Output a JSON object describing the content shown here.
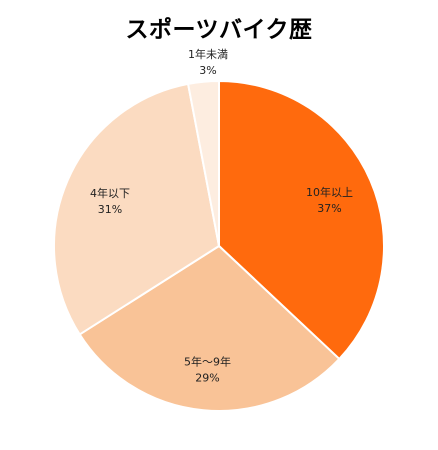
{
  "chart_data": {
    "type": "pie",
    "title": "スポーツバイク歴",
    "slices": [
      {
        "label": "10年以上",
        "percent_label": "37%",
        "value": 37,
        "color": "#FF6A0D"
      },
      {
        "label": "5年〜9年",
        "percent_label": "29%",
        "value": 29,
        "color": "#F9C397"
      },
      {
        "label": "4年以下",
        "percent_label": "31%",
        "value": 31,
        "color": "#FBDBC1"
      },
      {
        "label": "1年未満",
        "percent_label": "3%",
        "value": 3,
        "color": "#FDEDE0"
      }
    ],
    "legend": "none",
    "start": "12 o'clock",
    "direction": "clockwise"
  }
}
